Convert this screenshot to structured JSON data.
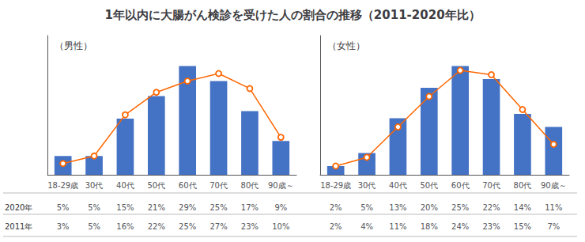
{
  "title": "1年以内に大腸がん検診を受けた人の割合の推移（2011-2020年比）",
  "chart_data": [
    {
      "type": "bar",
      "title": "（男性）",
      "categories": [
        "18-29歳",
        "30代",
        "40代",
        "50代",
        "60代",
        "70代",
        "80代",
        "90歳～"
      ],
      "series": [
        {
          "name": "2020年",
          "type": "bar",
          "color": "#4472C4",
          "values": [
            5,
            5,
            15,
            21,
            29,
            25,
            17,
            9
          ],
          "value_labels": [
            "5%",
            "5%",
            "15%",
            "21%",
            "29%",
            "25%",
            "17%",
            "9%"
          ]
        },
        {
          "name": "2011年",
          "type": "line",
          "color": "#FF6600",
          "marker": "circle",
          "values": [
            3,
            5,
            16,
            22,
            25,
            27,
            23,
            10
          ],
          "value_labels": [
            "3%",
            "5%",
            "16%",
            "22%",
            "25%",
            "27%",
            "23%",
            "10%"
          ]
        }
      ],
      "ylim": [
        0,
        37.12
      ],
      "tick_labels": "x",
      "grid": false
    },
    {
      "type": "bar",
      "title": "（女性）",
      "categories": [
        "18-29歳",
        "30代",
        "40代",
        "50代",
        "60代",
        "70代",
        "80代",
        "90歳～"
      ],
      "series": [
        {
          "name": "2020年",
          "type": "bar",
          "color": "#4472C4",
          "values": [
            2,
            5,
            13,
            20,
            25,
            22,
            14,
            11
          ],
          "value_labels": [
            "2%",
            "5%",
            "13%",
            "20%",
            "25%",
            "22%",
            "14%",
            "11%"
          ]
        },
        {
          "name": "2011年",
          "type": "line",
          "color": "#FF6600",
          "marker": "circle",
          "values": [
            2,
            4,
            11,
            18,
            24,
            23,
            15,
            7
          ],
          "value_labels": [
            "2%",
            "4%",
            "11%",
            "18%",
            "24%",
            "23%",
            "15%",
            "7%"
          ]
        }
      ],
      "ylim": [
        0,
        32
      ],
      "tick_labels": "x",
      "grid": false
    }
  ]
}
